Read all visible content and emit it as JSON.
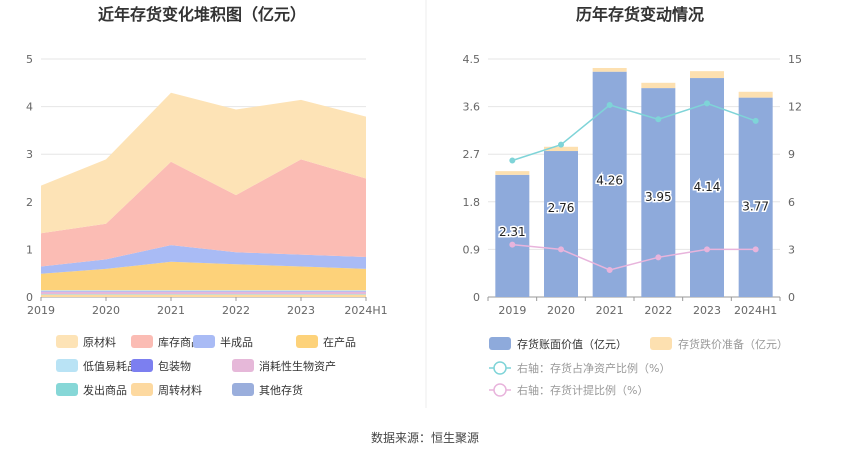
{
  "footer": {
    "source": "数据来源：恒生聚源"
  },
  "chart_data": [
    {
      "type": "area",
      "title": "近年存货变化堆积图（亿元）",
      "x": [
        "2019",
        "2020",
        "2021",
        "2022",
        "2023",
        "2024H1"
      ],
      "ylim": [
        0,
        5
      ],
      "yticks": [
        "0",
        "1",
        "2",
        "3",
        "4",
        "5"
      ],
      "stacked": true,
      "grid": true,
      "legend_position": "bottom",
      "series": [
        {
          "name": "原材料",
          "color": "#fde3b6",
          "values": [
            1.0,
            1.35,
            1.45,
            1.8,
            1.25,
            1.3
          ]
        },
        {
          "name": "库存商品",
          "color": "#fbbcb4",
          "values": [
            0.7,
            0.75,
            1.75,
            1.2,
            2.0,
            1.65
          ]
        },
        {
          "name": "半成品",
          "color": "#a9bbf5",
          "values": [
            0.15,
            0.2,
            0.35,
            0.25,
            0.25,
            0.25
          ]
        },
        {
          "name": "在产品",
          "color": "#fdd27a",
          "values": [
            0.35,
            0.45,
            0.6,
            0.55,
            0.5,
            0.45
          ]
        },
        {
          "name": "低值易耗品",
          "color": "#b9e3f5",
          "values": [
            0.02,
            0.02,
            0.02,
            0.02,
            0.02,
            0.02
          ]
        },
        {
          "name": "包装物",
          "color": "#7c7ff0",
          "values": [
            0.01,
            0.01,
            0.01,
            0.01,
            0.01,
            0.01
          ]
        },
        {
          "name": "消耗性生物资产",
          "color": "#e6b8d9",
          "values": [
            0.05,
            0.05,
            0.05,
            0.05,
            0.05,
            0.05
          ]
        },
        {
          "name": "发出商品",
          "color": "#86d7d7",
          "values": [
            0.01,
            0.01,
            0.01,
            0.01,
            0.01,
            0.01
          ]
        },
        {
          "name": "周转材料",
          "color": "#fdd9a0",
          "values": [
            0.05,
            0.05,
            0.05,
            0.05,
            0.05,
            0.05
          ]
        },
        {
          "name": "其他存货",
          "color": "#9aaedc",
          "values": [
            0.0,
            0.0,
            0.0,
            0.0,
            0.0,
            0.0
          ]
        }
      ]
    },
    {
      "type": "bar",
      "title": "历年存货变动情况",
      "categories": [
        "2019",
        "2020",
        "2021",
        "2022",
        "2023",
        "2024H1"
      ],
      "ylim": [
        0,
        4.5
      ],
      "yticks": [
        "0",
        "0.9",
        "1.8",
        "2.7",
        "3.6",
        "4.5"
      ],
      "y2lim": [
        0,
        15
      ],
      "y2ticks": [
        "0",
        "3",
        "6",
        "9",
        "12",
        "15"
      ],
      "grid": true,
      "legend_position": "bottom",
      "series": [
        {
          "name": "存货账面价值（亿元）",
          "kind": "bar",
          "color": "#8eaadb",
          "values": [
            2.31,
            2.76,
            4.26,
            3.95,
            4.14,
            3.77
          ],
          "labels": [
            "2.31",
            "2.76",
            "4.26",
            "3.95",
            "4.14",
            "3.77"
          ]
        },
        {
          "name": "存货跌价准备（亿元）",
          "kind": "bar-stack",
          "color": "#fde0b0",
          "values": [
            0.07,
            0.08,
            0.07,
            0.1,
            0.13,
            0.11
          ]
        },
        {
          "name": "右轴：存货占净资产比例（%）",
          "kind": "line",
          "axis": "right",
          "color": "#7fd4d8",
          "values": [
            8.6,
            9.6,
            12.1,
            11.2,
            12.2,
            11.1
          ]
        },
        {
          "name": "右轴：存货计提比例（%）",
          "kind": "line",
          "axis": "right",
          "color": "#e8b4dc",
          "values": [
            3.3,
            3.0,
            1.7,
            2.5,
            3.0,
            3.0
          ]
        }
      ]
    }
  ]
}
